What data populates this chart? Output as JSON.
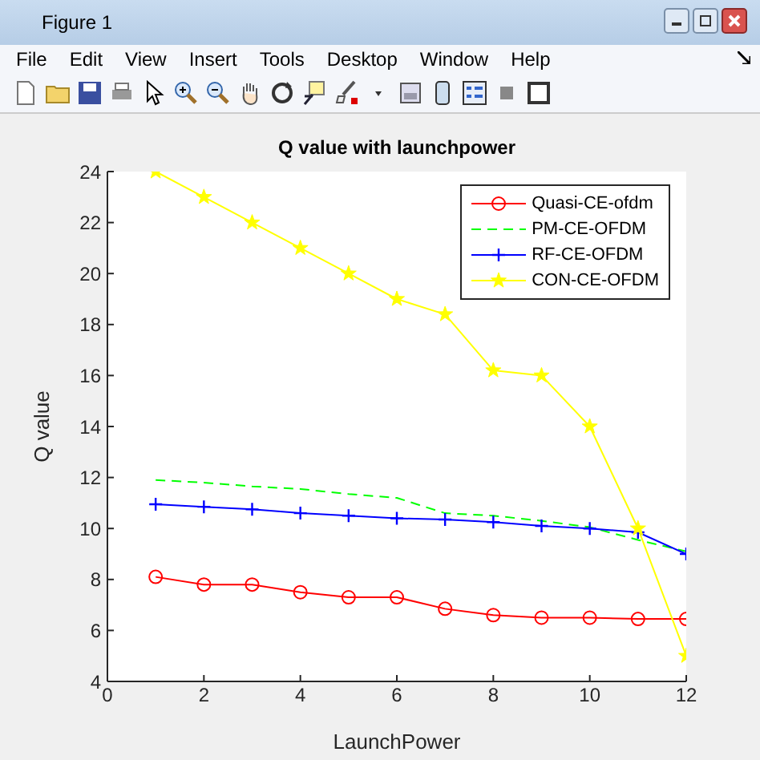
{
  "chart_data": {
    "type": "line",
    "title": "Q value with launchpower",
    "xlabel": "LaunchPower",
    "ylabel": "Q value",
    "annotations": [
      "Figure 1",
      "File",
      "Edit",
      "View",
      "Insert",
      "Tools",
      "Desktop",
      "Window",
      "Help"
    ],
    "x": [
      1,
      2,
      3,
      4,
      5,
      6,
      7,
      8,
      9,
      10,
      11,
      12
    ],
    "xlim": [
      0,
      12
    ],
    "xticks": [
      0,
      2,
      4,
      6,
      8,
      10,
      12
    ],
    "ylim": [
      4,
      24
    ],
    "yticks": [
      4,
      6,
      8,
      10,
      12,
      14,
      16,
      18,
      20,
      22,
      24
    ],
    "grid": false,
    "legend": "top right",
    "series": [
      {
        "name": "Quasi-CE-ofdm",
        "color": "#ff0000",
        "marker": "circle",
        "line_style": "solid",
        "values": [
          8.1,
          7.8,
          7.8,
          7.5,
          7.3,
          7.3,
          6.85,
          6.6,
          6.5,
          6.5,
          6.45,
          6.45
        ]
      },
      {
        "name": "PM-CE-OFDM",
        "color": "#00ff00",
        "marker": "none",
        "line_style": "dashed",
        "values": [
          11.9,
          11.8,
          11.65,
          11.55,
          11.35,
          11.2,
          10.6,
          10.5,
          10.3,
          10.05,
          9.55,
          9.1
        ]
      },
      {
        "name": "RF-CE-OFDM",
        "color": "#0000ff",
        "marker": "cross",
        "line_style": "solid",
        "values": [
          10.95,
          10.85,
          10.75,
          10.6,
          10.5,
          10.4,
          10.35,
          10.25,
          10.1,
          10.0,
          9.85,
          9.0
        ]
      },
      {
        "name": "CON-CE-OFDM",
        "color": "#ffff00",
        "marker": "star",
        "line_style": "solid",
        "values": [
          24,
          23,
          22,
          21,
          20,
          19,
          18.4,
          16.2,
          16,
          14,
          10,
          5
        ]
      }
    ]
  }
}
